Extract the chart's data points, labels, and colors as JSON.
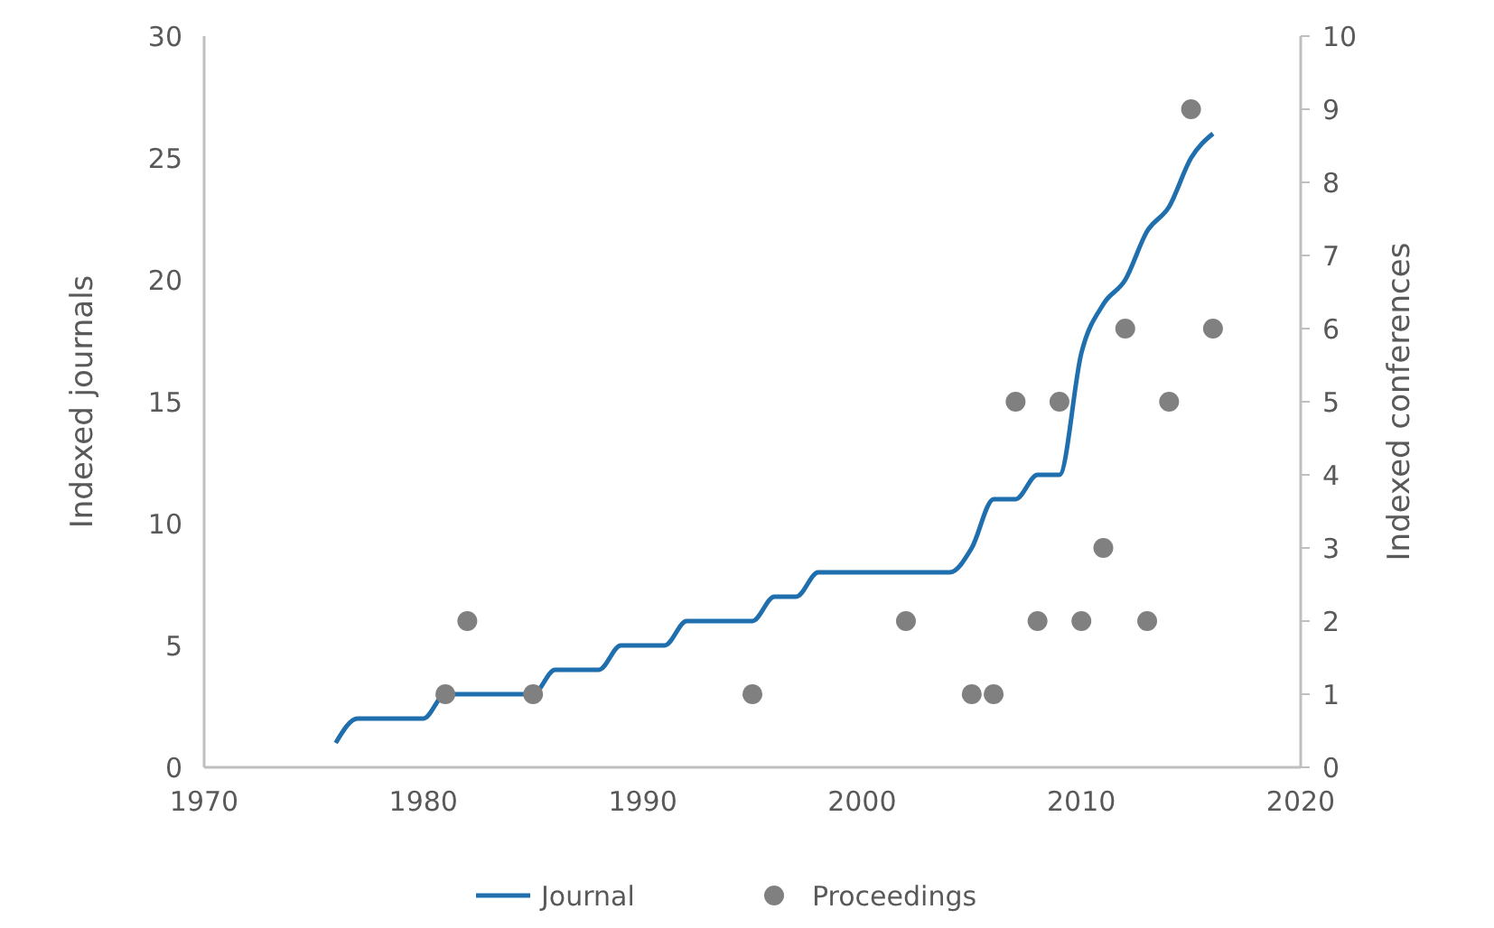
{
  "chart_data": {
    "type": "line",
    "ylabel": "Indexed journals",
    "y2label": "Indexed conferences",
    "xlim": [
      1970,
      2020
    ],
    "xticks": [
      1970,
      1980,
      1990,
      2000,
      2010,
      2020
    ],
    "ylim": [
      0,
      30
    ],
    "yticks": [
      0,
      5,
      10,
      15,
      20,
      25,
      30
    ],
    "y2lim": [
      0,
      10
    ],
    "y2ticks": [
      0,
      1,
      2,
      3,
      4,
      5,
      6,
      7,
      8,
      9,
      10
    ],
    "grid": false,
    "legend": "bottom",
    "series": [
      {
        "name": "Journal",
        "color": "#1f6fae",
        "marker": "none",
        "line_style": "solid",
        "x": [
          1976,
          1977,
          1978,
          1979,
          1980,
          1981,
          1982,
          1983,
          1984,
          1985,
          1986,
          1987,
          1988,
          1989,
          1990,
          1991,
          1992,
          1993,
          1994,
          1995,
          1996,
          1997,
          1998,
          1999,
          2000,
          2001,
          2002,
          2003,
          2004,
          2005,
          2006,
          2007,
          2008,
          2009,
          2010,
          2011,
          2012,
          2013,
          2014,
          2015,
          2016
        ],
        "values": [
          1,
          2,
          2,
          2,
          2,
          3,
          3,
          3,
          3,
          3,
          4,
          4,
          4,
          5,
          5,
          5,
          6,
          6,
          6,
          6,
          7,
          7,
          8,
          8,
          8,
          8,
          8,
          8,
          8,
          9,
          11,
          11,
          12,
          12,
          17,
          19,
          20,
          22,
          23,
          25,
          26
        ]
      },
      {
        "name": "Proceedings",
        "type": "scatter",
        "axis": "y2",
        "color": "#808080",
        "marker": "circle",
        "x": [
          1981,
          1982,
          1985,
          1995,
          2002,
          2005,
          2006,
          2007,
          2008,
          2009,
          2010,
          2011,
          2012,
          2013,
          2014,
          2015,
          2016
        ],
        "values": [
          1,
          2,
          1,
          1,
          2,
          1,
          1,
          5,
          2,
          5,
          2,
          3,
          6,
          2,
          5,
          9,
          6
        ]
      }
    ]
  }
}
